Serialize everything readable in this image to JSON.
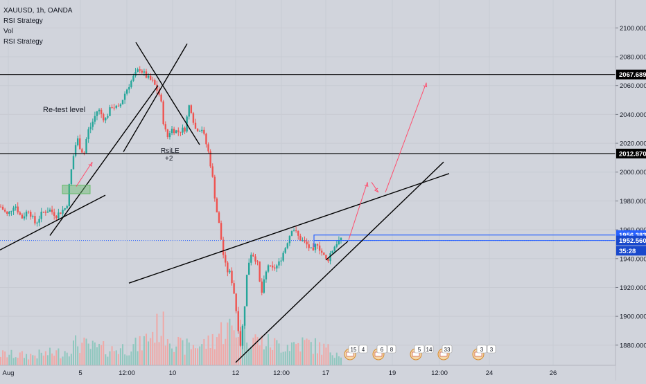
{
  "legend": {
    "symbol": "XAUUSD, 1h, OANDA",
    "indicators": [
      "RSI Strategy",
      "Vol",
      "RSI Strategy"
    ]
  },
  "annotations": {
    "retest": "Re-test level",
    "rsi_signal_label": "RsiLE",
    "rsi_signal_qty": "+2"
  },
  "colors": {
    "background": "#d1d4dc",
    "up": "#26a69a",
    "down": "#ef5350",
    "vol_up": "#8fc7be",
    "vol_down": "#f0a8a6",
    "trendline": "#000000",
    "blue_box": "#2962ff",
    "projection": "#ff4d6d"
  },
  "chart_data": {
    "type": "candlestick",
    "symbol": "XAUUSD",
    "interval": "1h",
    "exchange": "OANDA",
    "y_axis": {
      "ticks": [
        1880,
        1900,
        1920,
        1940,
        1960,
        1980,
        2000,
        2020,
        2040,
        2060,
        2080,
        2100
      ],
      "tick_labels": [
        "1880.000",
        "1900.000",
        "1920.000",
        "1940.000",
        "1960.000",
        "1980.000",
        "2000.000",
        "2020.000",
        "2040.000",
        "2060.000",
        "2080.000",
        "2100.000"
      ],
      "range": [
        1866,
        2116
      ],
      "side": "right"
    },
    "x_axis": {
      "tick_labels": [
        "Aug",
        "5",
        "12:00",
        "10",
        "12",
        "12:00",
        "17",
        "19",
        "12:00",
        "24",
        "26"
      ]
    },
    "price_labels": [
      {
        "value": 2067.689,
        "label": "2067.689",
        "style": "black"
      },
      {
        "value": 2012.87,
        "label": "2012.870",
        "style": "black"
      },
      {
        "value": 1956.383,
        "label": "1956.383",
        "style": "blue"
      },
      {
        "value": 1952.56,
        "label": "1952.560",
        "style": "navy"
      },
      {
        "value": 1945.5,
        "label": "35:28",
        "style": "countdown"
      }
    ],
    "horizontal_levels": [
      2067.689,
      2012.87
    ],
    "current_price": 1952.56,
    "ohlc_anchor_points": [
      [
        0,
        1976
      ],
      [
        10,
        1970
      ],
      [
        20,
        1978
      ],
      [
        30,
        1968
      ],
      [
        40,
        1974
      ],
      [
        50,
        1964
      ],
      [
        60,
        1972
      ],
      [
        70,
        1974
      ],
      [
        80,
        1970
      ],
      [
        90,
        1974
      ],
      [
        95,
        1976
      ],
      [
        100,
        1996
      ],
      [
        105,
        2012
      ],
      [
        110,
        2024
      ],
      [
        115,
        2016
      ],
      [
        120,
        2013
      ],
      [
        125,
        2028
      ],
      [
        130,
        2032
      ],
      [
        140,
        2044
      ],
      [
        150,
        2036
      ],
      [
        160,
        2046
      ],
      [
        170,
        2044
      ],
      [
        180,
        2056
      ],
      [
        190,
        2065
      ],
      [
        200,
        2072
      ],
      [
        210,
        2066
      ],
      [
        220,
        2062
      ],
      [
        230,
        2052
      ],
      [
        235,
        2032
      ],
      [
        240,
        2024
      ],
      [
        245,
        2030
      ],
      [
        255,
        2028
      ],
      [
        265,
        2030
      ],
      [
        272,
        2048
      ],
      [
        280,
        2030
      ],
      [
        290,
        2030
      ],
      [
        300,
        2012
      ],
      [
        305,
        1996
      ],
      [
        310,
        1976
      ],
      [
        315,
        1962
      ],
      [
        320,
        1944
      ],
      [
        325,
        1932
      ],
      [
        330,
        1930
      ],
      [
        335,
        1920
      ],
      [
        340,
        1900
      ],
      [
        345,
        1880
      ],
      [
        350,
        1900
      ],
      [
        355,
        1932
      ],
      [
        360,
        1944
      ],
      [
        365,
        1942
      ],
      [
        370,
        1936
      ],
      [
        375,
        1914
      ],
      [
        380,
        1926
      ],
      [
        385,
        1936
      ],
      [
        390,
        1932
      ],
      [
        400,
        1936
      ],
      [
        410,
        1948
      ],
      [
        420,
        1962
      ],
      [
        425,
        1958
      ],
      [
        430,
        1954
      ],
      [
        440,
        1950
      ],
      [
        450,
        1944
      ],
      [
        455,
        1952
      ],
      [
        460,
        1946
      ],
      [
        465,
        1942
      ],
      [
        470,
        1938
      ],
      [
        475,
        1944
      ],
      [
        480,
        1948
      ],
      [
        485,
        1952
      ],
      [
        490,
        1952.56
      ]
    ],
    "volume_profile_anchors": [
      [
        0,
        0.25
      ],
      [
        40,
        0.22
      ],
      [
        90,
        0.3
      ],
      [
        110,
        0.5
      ],
      [
        130,
        0.4
      ],
      [
        160,
        0.35
      ],
      [
        200,
        0.45
      ],
      [
        230,
        0.9
      ],
      [
        260,
        0.4
      ],
      [
        300,
        0.5
      ],
      [
        320,
        0.8
      ],
      [
        345,
        0.85
      ],
      [
        370,
        0.55
      ],
      [
        400,
        0.45
      ],
      [
        440,
        0.5
      ],
      [
        470,
        0.35
      ],
      [
        490,
        0.3
      ]
    ],
    "event_markers": [
      {
        "label": "15",
        "badge": "4"
      },
      {
        "label": "6",
        "badge": "8"
      },
      {
        "label": "5",
        "badge": "14"
      },
      {
        "label": "33",
        "badge": ""
      },
      {
        "label": "3",
        "badge": "3"
      }
    ]
  }
}
